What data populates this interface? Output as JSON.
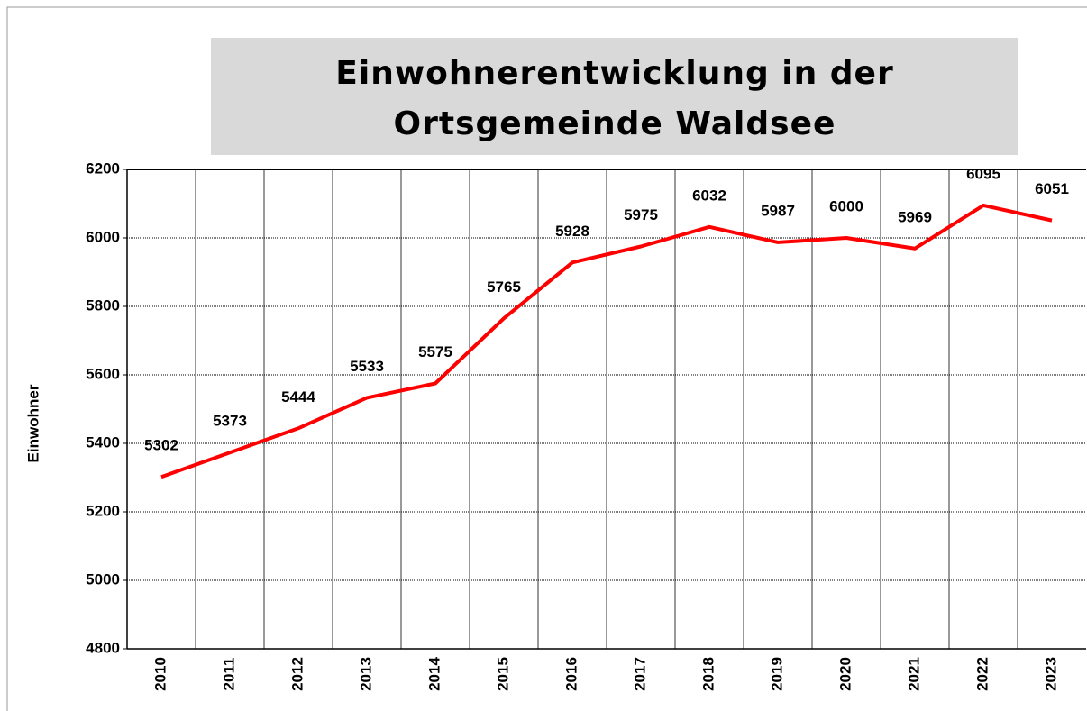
{
  "chart_data": {
    "type": "line",
    "title": "Einwohnerentwicklung in der Ortsgemeinde Waldsee",
    "y_label": "Einwohner",
    "categories": [
      "2010",
      "2011",
      "2012",
      "2013",
      "2014",
      "2015",
      "2016",
      "2017",
      "2018",
      "2019",
      "2020",
      "2021",
      "2022",
      "2023"
    ],
    "series": [
      {
        "name": "Einwohner",
        "color": "#ff0000",
        "values": [
          5302,
          5373,
          5444,
          5533,
          5575,
          5765,
          5928,
          5975,
          6032,
          5987,
          6000,
          5969,
          6095,
          6051
        ]
      }
    ],
    "ylim": [
      4800,
      6200
    ],
    "yticks": [
      4800,
      5000,
      5200,
      5400,
      5600,
      5800,
      6000,
      6200
    ],
    "grid": true
  }
}
